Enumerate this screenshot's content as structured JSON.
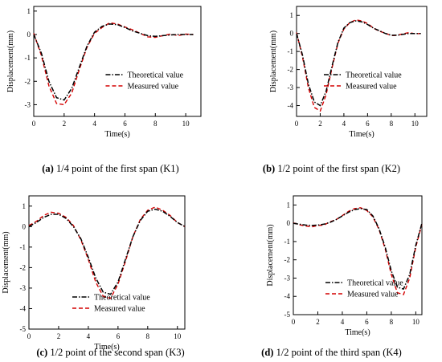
{
  "panels": [
    {
      "label": "(a)",
      "caption": " 1/4 point of the first span (K1)"
    },
    {
      "label": "(b)",
      "caption": " 1/2 point of the first span (K2)"
    },
    {
      "label": "(c)",
      "caption": " 1/2 point of the second span (K3)"
    },
    {
      "label": "(d)",
      "caption": " 1/2 point of the third span (K4)"
    }
  ],
  "chart_data": [
    {
      "type": "line",
      "xlabel": "Time(s)",
      "ylabel": "Displacement(mm)",
      "xlim": [
        0,
        11
      ],
      "ylim": [
        -3.5,
        1.2
      ],
      "xticks": [
        0,
        2,
        4,
        6,
        8,
        10
      ],
      "yticks": [
        1,
        0,
        -1,
        -2,
        -3
      ],
      "x": [
        0,
        0.5,
        1,
        1.5,
        2,
        2.5,
        3,
        3.5,
        4,
        4.5,
        5,
        5.5,
        6,
        6.5,
        7,
        7.5,
        8,
        8.5,
        9,
        9.5,
        10,
        10.5
      ],
      "series": [
        {
          "name": "Theoretical value",
          "color": "#000000",
          "dash": "dash-dot",
          "values": [
            0,
            -0.8,
            -2.0,
            -2.7,
            -2.8,
            -2.3,
            -1.4,
            -0.5,
            0.1,
            0.35,
            0.45,
            0.42,
            0.3,
            0.15,
            0.05,
            -0.05,
            -0.08,
            -0.05,
            -0.02,
            0,
            0,
            0
          ]
        },
        {
          "name": "Measured value",
          "color": "#d40000",
          "dash": "dashed",
          "values": [
            0.05,
            -0.9,
            -2.2,
            -2.95,
            -3.0,
            -2.5,
            -1.5,
            -0.55,
            0.05,
            0.3,
            0.5,
            0.45,
            0.32,
            0.2,
            0.05,
            -0.1,
            -0.12,
            -0.05,
            0.02,
            -0.05,
            0.02,
            0
          ]
        }
      ],
      "legend": "center-right"
    },
    {
      "type": "line",
      "xlabel": "Time(s)",
      "ylabel": "Displacement(mm)",
      "xlim": [
        0,
        11
      ],
      "ylim": [
        -4.6,
        1.5
      ],
      "xticks": [
        0,
        2,
        4,
        6,
        8,
        10
      ],
      "yticks": [
        1,
        0,
        -1,
        -2,
        -3,
        -4
      ],
      "x": [
        0,
        0.5,
        1,
        1.5,
        2,
        2.5,
        3,
        3.5,
        4,
        4.5,
        5,
        5.5,
        6,
        6.5,
        7,
        7.5,
        8,
        8.5,
        9,
        9.5,
        10,
        10.5
      ],
      "series": [
        {
          "name": "Theoretical value",
          "color": "#000000",
          "dash": "dash-dot",
          "values": [
            0,
            -1.2,
            -2.8,
            -3.8,
            -4.0,
            -3.2,
            -1.8,
            -0.5,
            0.3,
            0.6,
            0.7,
            0.65,
            0.5,
            0.3,
            0.15,
            0,
            -0.1,
            -0.1,
            -0.05,
            0,
            0,
            0
          ]
        },
        {
          "name": "Measured value",
          "color": "#d40000",
          "dash": "dashed",
          "values": [
            0.05,
            -1.3,
            -3.0,
            -4.1,
            -4.3,
            -3.4,
            -1.9,
            -0.55,
            0.25,
            0.6,
            0.75,
            0.7,
            0.55,
            0.3,
            0.12,
            0.02,
            -0.12,
            -0.1,
            -0.02,
            0.05,
            -0.02,
            0
          ]
        }
      ],
      "legend": "center-right"
    },
    {
      "type": "line",
      "xlabel": "Time(s)",
      "ylabel": "Displacement(mm)",
      "xlim": [
        0,
        10.5
      ],
      "ylim": [
        -5,
        1.5
      ],
      "xticks": [
        0,
        2,
        4,
        6,
        8,
        10
      ],
      "yticks": [
        1,
        0,
        -1,
        -2,
        -3,
        -4,
        -5
      ],
      "x": [
        0,
        0.5,
        1,
        1.5,
        2,
        2.5,
        3,
        3.5,
        4,
        4.5,
        5,
        5.5,
        6,
        6.5,
        7,
        7.5,
        8,
        8.5,
        9,
        9.5,
        10,
        10.5
      ],
      "series": [
        {
          "name": "Theoretical value",
          "color": "#000000",
          "dash": "dash-dot",
          "values": [
            0,
            0.2,
            0.45,
            0.6,
            0.6,
            0.4,
            0,
            -0.6,
            -1.5,
            -2.5,
            -3.2,
            -3.3,
            -2.7,
            -1.6,
            -0.5,
            0.3,
            0.75,
            0.85,
            0.75,
            0.5,
            0.2,
            0
          ]
        },
        {
          "name": "Measured value",
          "color": "#d40000",
          "dash": "dashed",
          "values": [
            0.05,
            0.25,
            0.55,
            0.7,
            0.65,
            0.45,
            0.05,
            -0.65,
            -1.6,
            -2.7,
            -3.4,
            -3.5,
            -2.8,
            -1.7,
            -0.5,
            0.35,
            0.8,
            0.95,
            0.8,
            0.55,
            0.2,
            0
          ]
        }
      ],
      "legend": "bottom-right"
    },
    {
      "type": "line",
      "xlabel": "Time(s)",
      "ylabel": "Displacement(mm)",
      "xlim": [
        0,
        10.5
      ],
      "ylim": [
        -5,
        1.5
      ],
      "xticks": [
        0,
        2,
        4,
        6,
        8,
        10
      ],
      "yticks": [
        1,
        0,
        -1,
        -2,
        -3,
        -4,
        -5
      ],
      "x": [
        0,
        0.5,
        1,
        1.5,
        2,
        2.5,
        3,
        3.5,
        4,
        4.5,
        5,
        5.5,
        6,
        6.5,
        7,
        7.5,
        8,
        8.5,
        9,
        9.5,
        10,
        10.5
      ],
      "series": [
        {
          "name": "Theoretical value",
          "color": "#000000",
          "dash": "dash-dot",
          "values": [
            0,
            -0.05,
            -0.1,
            -0.12,
            -0.1,
            -0.05,
            0.05,
            0.2,
            0.4,
            0.6,
            0.75,
            0.8,
            0.75,
            0.4,
            -0.3,
            -1.3,
            -2.6,
            -3.5,
            -3.6,
            -2.8,
            -1.2,
            0
          ]
        },
        {
          "name": "Measured value",
          "color": "#d40000",
          "dash": "dashed",
          "values": [
            0.02,
            -0.08,
            -0.15,
            -0.2,
            -0.12,
            -0.1,
            0.08,
            0.2,
            0.42,
            0.65,
            0.8,
            0.85,
            0.7,
            0.35,
            -0.35,
            -1.4,
            -2.8,
            -3.8,
            -3.9,
            -3.0,
            -1.3,
            -0.05
          ]
        }
      ],
      "legend": "bottom-right"
    }
  ]
}
